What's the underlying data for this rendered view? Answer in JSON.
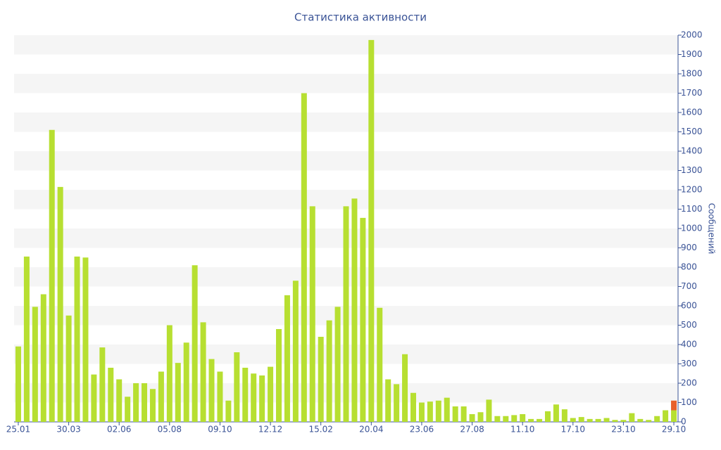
{
  "chart_data": {
    "type": "bar",
    "title": "Статистика активности",
    "y_axis_label": "Сообщений",
    "categories": [
      "25.01",
      null,
      null,
      null,
      null,
      null,
      "30.03",
      null,
      null,
      null,
      null,
      null,
      "02.06",
      null,
      null,
      null,
      null,
      null,
      "05.08",
      null,
      null,
      null,
      null,
      null,
      "09.10",
      null,
      null,
      null,
      null,
      null,
      "12.12",
      null,
      null,
      null,
      null,
      null,
      "15.02",
      null,
      null,
      null,
      null,
      null,
      "20.04",
      null,
      null,
      null,
      null,
      null,
      "23.06",
      null,
      null,
      null,
      null,
      null,
      "27.08",
      null,
      null,
      null,
      null,
      null,
      "11.10",
      null,
      null,
      null,
      null,
      null,
      "17.10",
      null,
      null,
      null,
      null,
      null,
      "23.10",
      null,
      null,
      null,
      null,
      null,
      "29.10"
    ],
    "series": [
      {
        "color": "#b7df31",
        "values": [
          390,
          855,
          595,
          660,
          1510,
          1215,
          550,
          855,
          850,
          245,
          385,
          280,
          220,
          130,
          200,
          200,
          170,
          260,
          500,
          305,
          410,
          810,
          515,
          325,
          260,
          110,
          360,
          280,
          250,
          240,
          285,
          480,
          655,
          730,
          1700,
          1115,
          440,
          525,
          595,
          1115,
          1155,
          1055,
          1975,
          590,
          220,
          195,
          350,
          150,
          100,
          105,
          110,
          125,
          80,
          80,
          40,
          50,
          115,
          30,
          30,
          35,
          40,
          15,
          15,
          55,
          90,
          65,
          20,
          25,
          15,
          15,
          20,
          10,
          10,
          45,
          15,
          10,
          30,
          60,
          60
        ]
      },
      {
        "color": "#e8602c",
        "values": [
          null,
          null,
          null,
          null,
          null,
          null,
          null,
          null,
          null,
          null,
          null,
          null,
          null,
          null,
          null,
          null,
          null,
          null,
          null,
          null,
          null,
          null,
          null,
          null,
          null,
          null,
          null,
          null,
          null,
          null,
          null,
          null,
          null,
          null,
          null,
          null,
          null,
          null,
          null,
          null,
          null,
          null,
          null,
          null,
          null,
          null,
          null,
          null,
          null,
          null,
          null,
          null,
          null,
          null,
          null,
          null,
          null,
          null,
          null,
          null,
          null,
          null,
          null,
          null,
          null,
          null,
          null,
          null,
          null,
          null,
          null,
          null,
          null,
          null,
          null,
          null,
          null,
          null,
          50
        ]
      }
    ],
    "ylim": [
      0,
      2000
    ],
    "yticks": [
      0,
      100,
      200,
      300,
      400,
      500,
      600,
      700,
      800,
      900,
      1000,
      1100,
      1200,
      1300,
      1400,
      1500,
      1600,
      1700,
      1800,
      1900,
      2000
    ],
    "grid": true
  }
}
